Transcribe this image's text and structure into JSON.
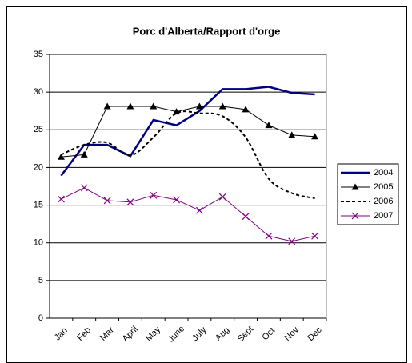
{
  "chart_data": {
    "type": "line",
    "title": "Porc d'Alberta/Rapport d'orge",
    "categories": [
      "Jan",
      "Feb",
      "Mar",
      "April",
      "May",
      "June",
      "July",
      "Aug",
      "Sept",
      "Oct",
      "Nov",
      "Dec"
    ],
    "series": [
      {
        "name": "2004",
        "color": "#000080",
        "width": 2.5,
        "values": [
          18.9,
          23.0,
          23.0,
          21.5,
          26.3,
          25.6,
          27.5,
          30.4,
          30.4,
          30.7,
          29.9,
          29.7
        ]
      },
      {
        "name": "2005",
        "color": "#000000",
        "width": 1,
        "marker": "triangle",
        "values": [
          21.4,
          21.7,
          28.1,
          28.1,
          28.1,
          27.4,
          28.1,
          28.1,
          27.7,
          25.6,
          24.3,
          24.1
        ]
      },
      {
        "name": "2006",
        "color": "#000000",
        "width": 2,
        "dash": true,
        "values": [
          21.7,
          23.0,
          23.3,
          21.6,
          24.0,
          27.2,
          27.2,
          26.8,
          24.0,
          18.5,
          16.6,
          15.9
        ]
      },
      {
        "name": "2007",
        "color": "#800080",
        "width": 1,
        "marker": "x",
        "values": [
          15.8,
          17.3,
          15.6,
          15.4,
          16.3,
          15.7,
          14.3,
          16.1,
          13.5,
          10.9,
          10.2,
          10.9
        ]
      }
    ],
    "ylim": [
      0,
      35
    ],
    "yticks": [
      0,
      5,
      10,
      15,
      20,
      25,
      30,
      35
    ],
    "grid": true,
    "legend": "right"
  }
}
